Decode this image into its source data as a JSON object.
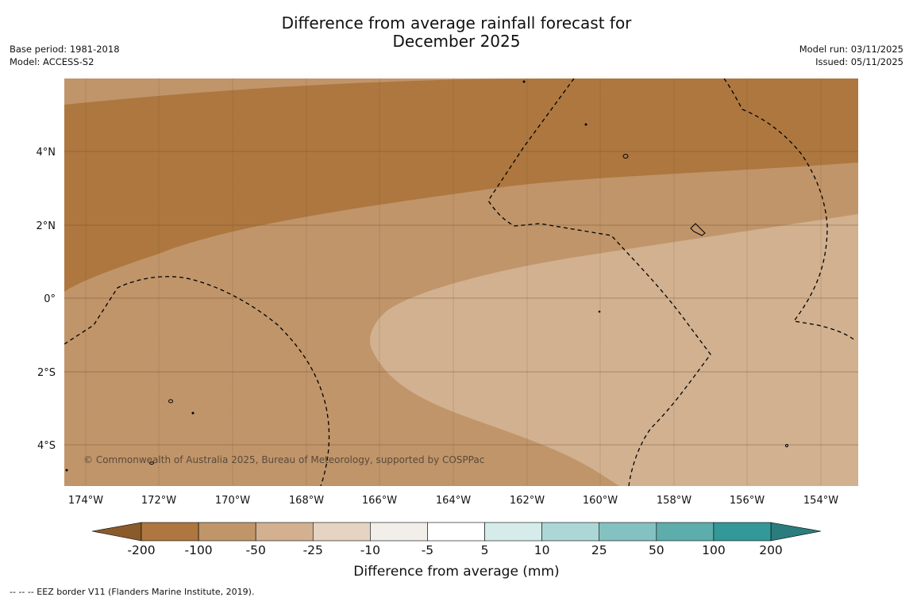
{
  "header": {
    "title_line1": "Difference from average rainfall forecast for",
    "title_line2": "December 2025",
    "base_period": "Base period: 1981-2018",
    "model": "Model: ACCESS-S2",
    "model_run": "Model run: 03/11/2025",
    "issued": "Issued: 05/11/2025"
  },
  "map": {
    "lon_labels": [
      "174°W",
      "172°W",
      "170°W",
      "168°W",
      "166°W",
      "164°W",
      "162°W",
      "160°W",
      "158°W",
      "156°W",
      "154°W"
    ],
    "lat_labels": [
      "4°N",
      "2°N",
      "0°",
      "2°S",
      "4°S"
    ],
    "copyright": "© Commonwealth of Australia 2025, Bureau of Meteorology, supported by COSPPac",
    "fill_colors": {
      "lt_minus100": "#ad773f",
      "minus100_to_minus50": "#c0956a",
      "minus50_to_minus25": "#d1b190"
    }
  },
  "colorbar": {
    "title": "Difference from average (mm)",
    "tick_labels": [
      "-200",
      "-100",
      "-50",
      "-25",
      "-10",
      "-5",
      "5",
      "10",
      "25",
      "50",
      "100",
      "200"
    ],
    "under_color": "#8a5a2b",
    "over_color": "#2a7d7c",
    "colors": [
      "#ad773f",
      "#c0956a",
      "#d3b190",
      "#e6d4c3",
      "#f2efea",
      "#ffffff",
      "#d6eceb",
      "#acd7d6",
      "#84c2c1",
      "#5cadac",
      "#339897"
    ]
  },
  "footnote": "--  --  -- EEZ border V11 (Flanders Marine Institute, 2019)."
}
